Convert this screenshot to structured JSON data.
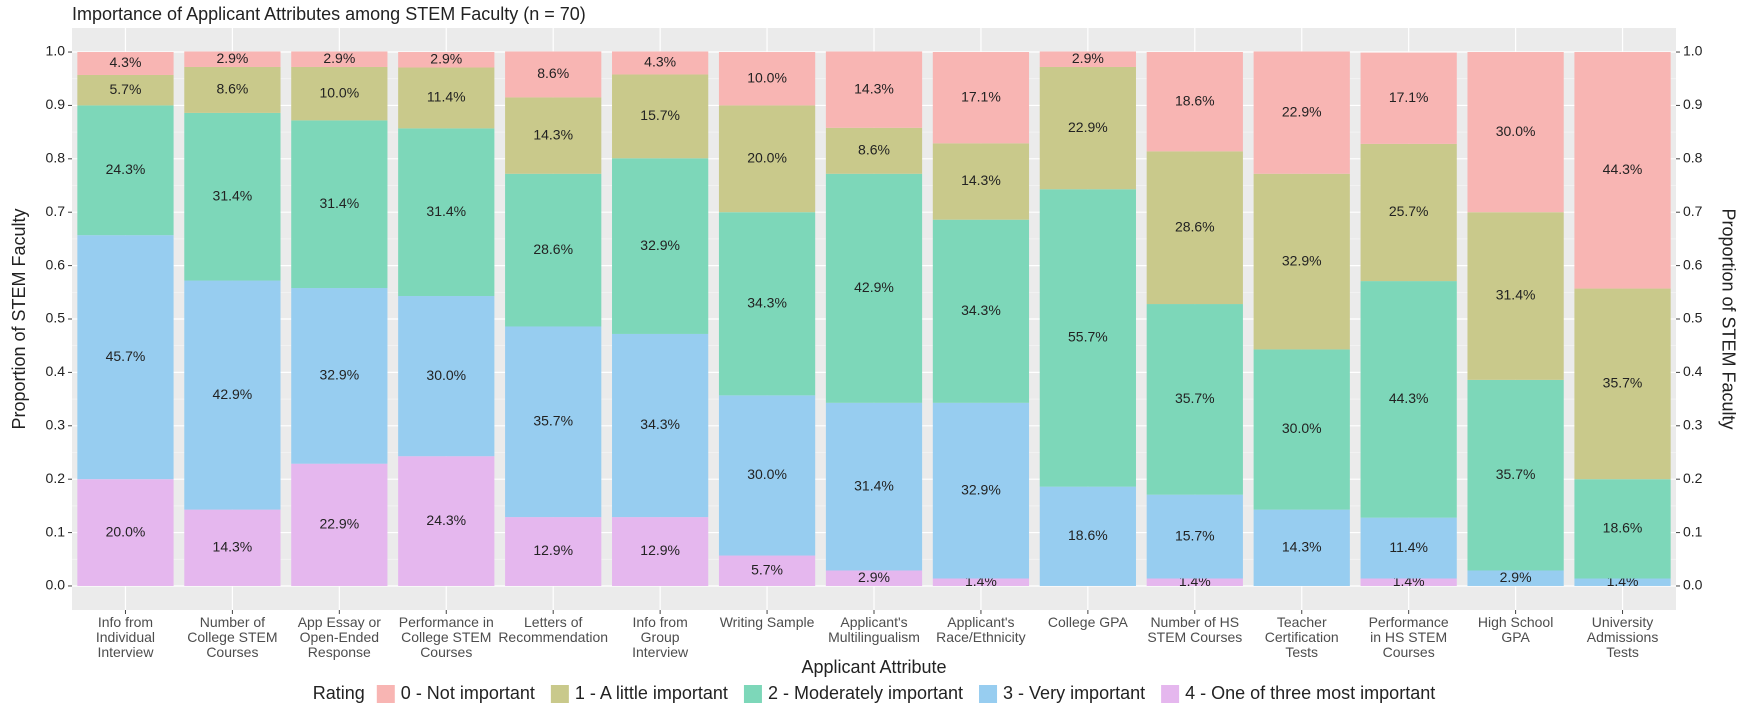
{
  "chart_data": {
    "type": "stacked_bar",
    "title": "Importance of Applicant Attributes among STEM Faculty (n = 70)",
    "x_label": "Applicant Attribute",
    "y_label": "Proportion of STEM Faculty",
    "legend_title": "Rating",
    "legend_position": "bottom",
    "grid": true,
    "secondary_axis": true,
    "categories": [
      "Info from\nIndividual\nInterview",
      "Number of\nCollege STEM\nCourses",
      "App Essay or\nOpen-Ended\nResponse",
      "Performance in\nCollege STEM\nCourses",
      "Letters of\nRecommendation",
      "Info from\nGroup\nInterview",
      "Writing Sample",
      "Applicant's\nMultilingualism",
      "Applicant's\nRace/Ethnicity",
      "College GPA",
      "Number of HS\nSTEM Courses",
      "Teacher\nCertification\nTests",
      "Performance\nin HS STEM\nCourses",
      "High School\nGPA",
      "University\nAdmissions\nTests"
    ],
    "ylim": [
      -0.045,
      1.045
    ],
    "yticks": [
      {
        "value": 0,
        "label": "0.0"
      },
      0.1,
      0.2,
      0.3,
      0.4,
      0.5,
      0.6,
      0.7,
      0.8,
      0.9,
      {
        "value": 1,
        "label": "1.0"
      }
    ],
    "series": [
      {
        "name": "0 - Not important",
        "color": "#f8b5b3",
        "values": [
          0.043,
          0.029,
          0.029,
          0.029,
          0.086,
          0.043,
          0.1,
          0.143,
          0.171,
          0.029,
          0.186,
          0.229,
          0.171,
          0.3,
          0.443
        ],
        "value_labels": [
          "4.3%",
          "2.9%",
          "2.9%",
          "2.9%",
          "8.6%",
          "4.3%",
          "10.0%",
          "14.3%",
          "17.1%",
          "2.9%",
          "18.6%",
          "22.9%",
          "17.1%",
          "30.0%",
          "44.3%"
        ]
      },
      {
        "name": "1 - A little important",
        "color": "#c9c98b",
        "values": [
          0.057,
          0.086,
          0.1,
          0.114,
          0.143,
          0.157,
          0.2,
          0.086,
          0.143,
          0.229,
          0.286,
          0.329,
          0.257,
          0.314,
          0.357
        ],
        "value_labels": [
          "5.7%",
          "8.6%",
          "10.0%",
          "11.4%",
          "14.3%",
          "15.7%",
          "20.0%",
          "8.6%",
          "14.3%",
          "22.9%",
          "28.6%",
          "32.9%",
          "25.7%",
          "31.4%",
          "35.7%"
        ]
      },
      {
        "name": "2 - Moderately important",
        "color": "#7dd7b9",
        "values": [
          0.243,
          0.314,
          0.314,
          0.314,
          0.286,
          0.329,
          0.343,
          0.429,
          0.343,
          0.557,
          0.357,
          0.3,
          0.443,
          0.357,
          0.186
        ],
        "value_labels": [
          "24.3%",
          "31.4%",
          "31.4%",
          "31.4%",
          "28.6%",
          "32.9%",
          "34.3%",
          "42.9%",
          "34.3%",
          "55.7%",
          "35.7%",
          "30.0%",
          "44.3%",
          "35.7%",
          "18.6%"
        ]
      },
      {
        "name": "3 - Very important",
        "color": "#97cdf0",
        "values": [
          0.457,
          0.429,
          0.329,
          0.3,
          0.357,
          0.343,
          0.3,
          0.314,
          0.329,
          0.186,
          0.157,
          0.143,
          0.114,
          0.029,
          0.014
        ],
        "value_labels": [
          "45.7%",
          "42.9%",
          "32.9%",
          "30.0%",
          "35.7%",
          "34.3%",
          "30.0%",
          "31.4%",
          "32.9%",
          "18.6%",
          "15.7%",
          "14.3%",
          "11.4%",
          "2.9%",
          "1.4%"
        ]
      },
      {
        "name": "4 - One of three most important",
        "color": "#e5b7ee",
        "values": [
          0.2,
          0.143,
          0.229,
          0.243,
          0.129,
          0.129,
          0.057,
          0.029,
          0.014,
          0,
          0.014,
          0,
          0.014,
          0,
          0
        ],
        "value_labels": [
          "20.0%",
          "14.3%",
          "22.9%",
          "24.3%",
          "12.9%",
          "12.9%",
          "5.7%",
          "2.9%",
          "1.4%",
          null,
          "1.4%",
          null,
          "1.4%",
          null,
          null
        ]
      }
    ]
  }
}
